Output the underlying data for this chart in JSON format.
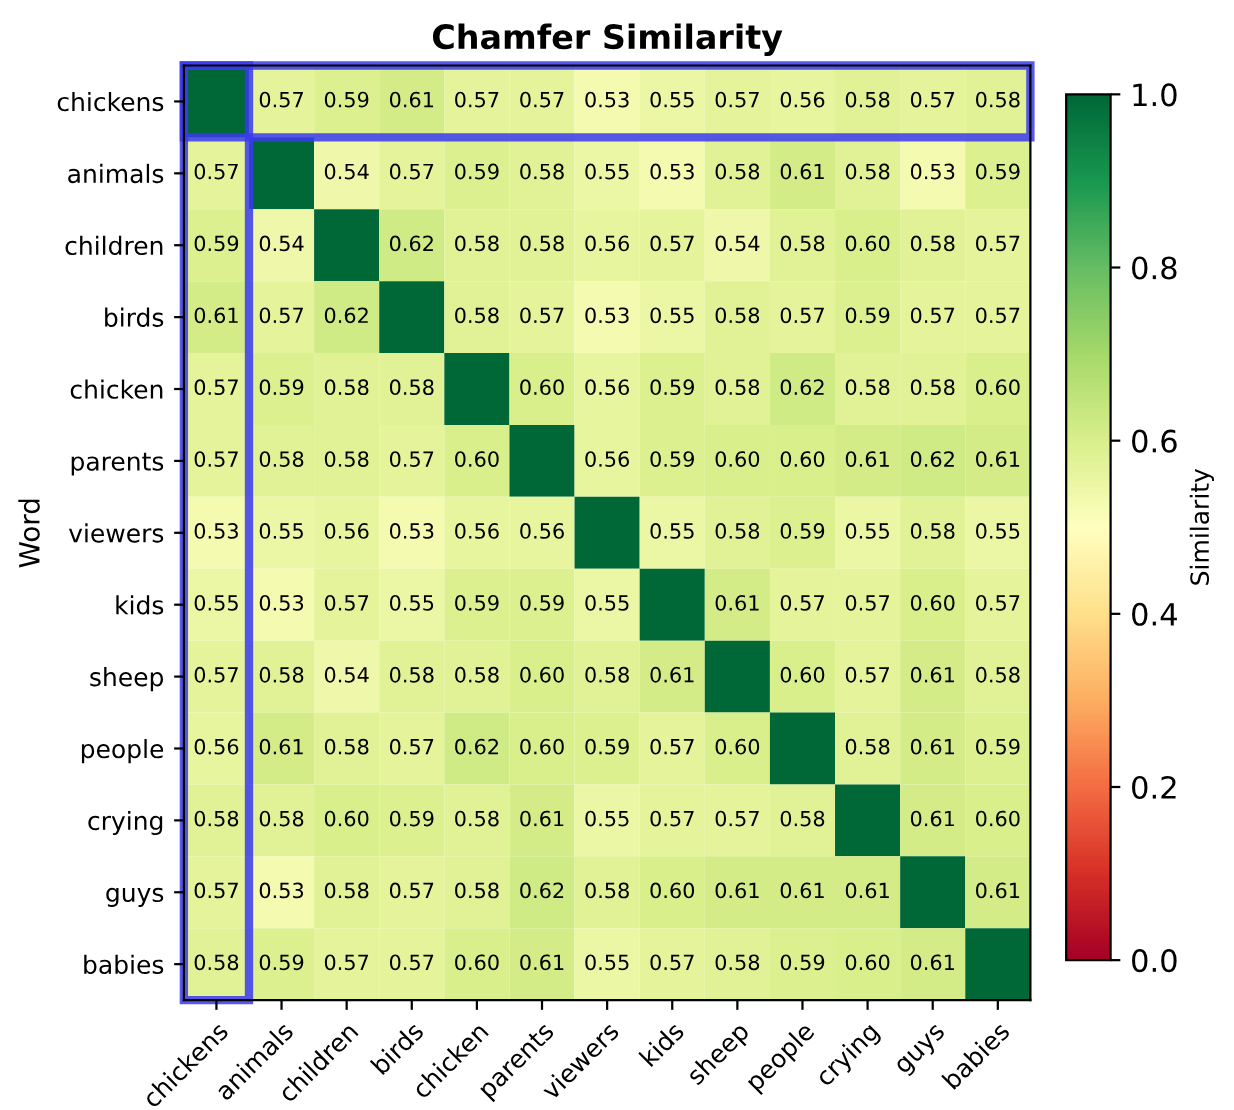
{
  "chart_data": {
    "type": "heatmap",
    "title": "Chamfer Similarity",
    "ylabel": "Word",
    "clabel": "Similarity",
    "categories": [
      "chickens",
      "animals",
      "children",
      "birds",
      "chicken",
      "parents",
      "viewers",
      "kids",
      "sheep",
      "people",
      "crying",
      "guys",
      "babies"
    ],
    "y_categories": [
      "chickens",
      "animals",
      "children",
      "birds",
      "chicken",
      "parents",
      "viewers",
      "kids",
      "sheep",
      "people",
      "crying",
      "guys",
      "babies"
    ],
    "cells": [
      [
        1.0,
        0.57,
        0.59,
        0.61,
        0.57,
        0.57,
        0.53,
        0.55,
        0.57,
        0.56,
        0.58,
        0.57,
        0.58
      ],
      [
        0.57,
        1.0,
        0.54,
        0.57,
        0.59,
        0.58,
        0.55,
        0.53,
        0.58,
        0.61,
        0.58,
        0.53,
        0.59
      ],
      [
        0.59,
        0.54,
        1.0,
        0.62,
        0.58,
        0.58,
        0.56,
        0.57,
        0.54,
        0.58,
        0.6,
        0.58,
        0.57
      ],
      [
        0.61,
        0.57,
        0.62,
        1.0,
        0.58,
        0.57,
        0.53,
        0.55,
        0.58,
        0.57,
        0.59,
        0.57,
        0.57
      ],
      [
        0.57,
        0.59,
        0.58,
        0.58,
        1.0,
        0.6,
        0.56,
        0.59,
        0.58,
        0.62,
        0.58,
        0.58,
        0.6
      ],
      [
        0.57,
        0.58,
        0.58,
        0.57,
        0.6,
        1.0,
        0.56,
        0.59,
        0.6,
        0.6,
        0.61,
        0.62,
        0.61
      ],
      [
        0.53,
        0.55,
        0.56,
        0.53,
        0.56,
        0.56,
        1.0,
        0.55,
        0.58,
        0.59,
        0.55,
        0.58,
        0.55
      ],
      [
        0.55,
        0.53,
        0.57,
        0.55,
        0.59,
        0.59,
        0.55,
        1.0,
        0.61,
        0.57,
        0.57,
        0.6,
        0.57
      ],
      [
        0.57,
        0.58,
        0.54,
        0.58,
        0.58,
        0.6,
        0.58,
        0.61,
        1.0,
        0.6,
        0.57,
        0.61,
        0.58
      ],
      [
        0.56,
        0.61,
        0.58,
        0.57,
        0.62,
        0.6,
        0.59,
        0.57,
        0.6,
        1.0,
        0.58,
        0.61,
        0.59
      ],
      [
        0.58,
        0.58,
        0.6,
        0.59,
        0.58,
        0.61,
        0.55,
        0.57,
        0.57,
        0.58,
        1.0,
        0.61,
        0.6
      ],
      [
        0.57,
        0.53,
        0.58,
        0.57,
        0.58,
        0.62,
        0.58,
        0.6,
        0.61,
        0.61,
        0.61,
        1.0,
        0.61
      ],
      [
        0.58,
        0.59,
        0.57,
        0.57,
        0.6,
        0.61,
        0.55,
        0.57,
        0.58,
        0.59,
        0.6,
        0.61,
        1.0
      ]
    ],
    "cell_labels": [
      [
        null,
        "0.57",
        "0.59",
        "0.61",
        "0.57",
        "0.57",
        "0.53",
        "0.55",
        "0.57",
        "0.56",
        "0.58",
        "0.57",
        "0.58"
      ],
      [
        "0.57",
        null,
        "0.54",
        "0.57",
        "0.59",
        "0.58",
        "0.55",
        "0.53",
        "0.58",
        "0.61",
        "0.58",
        "0.53",
        "0.59"
      ],
      [
        "0.59",
        "0.54",
        null,
        "0.62",
        "0.58",
        "0.58",
        "0.56",
        "0.57",
        "0.54",
        "0.58",
        "0.60",
        "0.58",
        "0.57"
      ],
      [
        "0.61",
        "0.57",
        "0.62",
        null,
        "0.58",
        "0.57",
        "0.53",
        "0.55",
        "0.58",
        "0.57",
        "0.59",
        "0.57",
        "0.57"
      ],
      [
        "0.57",
        "0.59",
        "0.58",
        "0.58",
        null,
        "0.60",
        "0.56",
        "0.59",
        "0.58",
        "0.62",
        "0.58",
        "0.58",
        "0.60"
      ],
      [
        "0.57",
        "0.58",
        "0.58",
        "0.57",
        "0.60",
        null,
        "0.56",
        "0.59",
        "0.60",
        "0.60",
        "0.61",
        "0.62",
        "0.61"
      ],
      [
        "0.53",
        "0.55",
        "0.56",
        "0.53",
        "0.56",
        "0.56",
        null,
        "0.55",
        "0.58",
        "0.59",
        "0.55",
        "0.58",
        "0.55"
      ],
      [
        "0.55",
        "0.53",
        "0.57",
        "0.55",
        "0.59",
        "0.59",
        "0.55",
        null,
        "0.61",
        "0.57",
        "0.57",
        "0.60",
        "0.57"
      ],
      [
        "0.57",
        "0.58",
        "0.54",
        "0.58",
        "0.58",
        "0.60",
        "0.58",
        "0.61",
        null,
        "0.60",
        "0.57",
        "0.61",
        "0.58"
      ],
      [
        "0.56",
        "0.61",
        "0.58",
        "0.57",
        "0.62",
        "0.60",
        "0.59",
        "0.57",
        "0.60",
        null,
        "0.58",
        "0.61",
        "0.59"
      ],
      [
        "0.58",
        "0.58",
        "0.60",
        "0.59",
        "0.58",
        "0.61",
        "0.55",
        "0.57",
        "0.57",
        "0.58",
        null,
        "0.61",
        "0.60"
      ],
      [
        "0.57",
        "0.53",
        "0.58",
        "0.57",
        "0.58",
        "0.62",
        "0.58",
        "0.60",
        "0.61",
        "0.61",
        "0.61",
        null,
        "0.61"
      ],
      [
        "0.58",
        "0.59",
        "0.57",
        "0.57",
        "0.60",
        "0.61",
        "0.55",
        "0.57",
        "0.58",
        "0.59",
        "0.60",
        "0.61",
        null
      ]
    ],
    "clim": [
      0,
      1
    ],
    "cticks": [
      {
        "value": 0,
        "label": "0.0"
      },
      {
        "value": 0.2,
        "label": "0.2"
      },
      {
        "value": 0.4,
        "label": "0.4"
      },
      {
        "value": 0.6,
        "label": "0.6"
      },
      {
        "value": 0.8,
        "label": "0.8"
      },
      {
        "value": 1,
        "label": "1.0"
      }
    ]
  }
}
